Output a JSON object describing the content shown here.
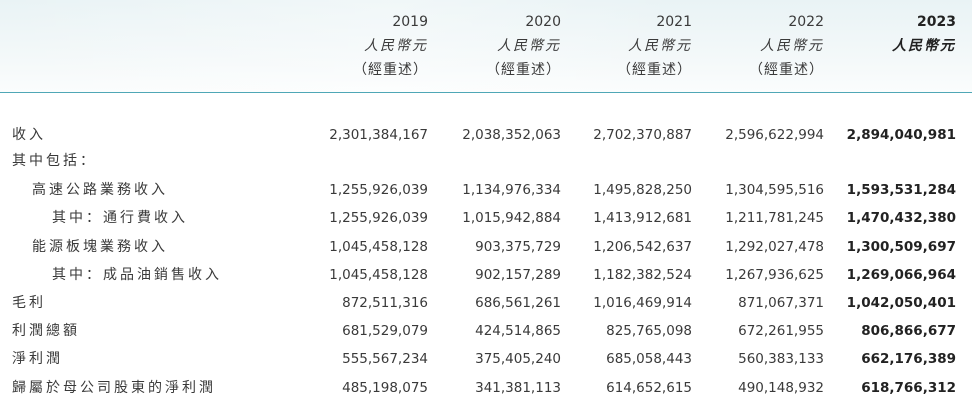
{
  "columns": [
    {
      "year": "2019",
      "currency": "人民幣元",
      "note": "（經重述）"
    },
    {
      "year": "2020",
      "currency": "人民幣元",
      "note": "（經重述）"
    },
    {
      "year": "2021",
      "currency": "人民幣元",
      "note": "（經重述）"
    },
    {
      "year": "2022",
      "currency": "人民幣元",
      "note": "（經重述）"
    },
    {
      "year": "2023",
      "currency": "人民幣元",
      "note": ""
    }
  ],
  "rows": [
    {
      "label": "收入",
      "indent": 0,
      "values": [
        "2,301,384,167",
        "2,038,352,063",
        "2,702,370,887",
        "2,596,622,994",
        "2,894,040,981"
      ]
    },
    {
      "label": "其中包括：",
      "indent": 0,
      "values": []
    },
    {
      "label": "高速公路業務收入",
      "indent": 1,
      "values": [
        "1,255,926,039",
        "1,134,976,334",
        "1,495,828,250",
        "1,304,595,516",
        "1,593,531,284"
      ]
    },
    {
      "label": "其中：通行費收入",
      "indent": 2,
      "values": [
        "1,255,926,039",
        "1,015,942,884",
        "1,413,912,681",
        "1,211,781,245",
        "1,470,432,380"
      ]
    },
    {
      "label": "能源板塊業務收入",
      "indent": 1,
      "values": [
        "1,045,458,128",
        "903,375,729",
        "1,206,542,637",
        "1,292,027,478",
        "1,300,509,697"
      ]
    },
    {
      "label": "其中：成品油銷售收入",
      "indent": 2,
      "values": [
        "1,045,458,128",
        "902,157,289",
        "1,182,382,524",
        "1,267,936,625",
        "1,269,066,964"
      ]
    },
    {
      "label": "毛利",
      "indent": 0,
      "values": [
        "872,511,316",
        "686,561,261",
        "1,016,469,914",
        "871,067,371",
        "1,042,050,401"
      ]
    },
    {
      "label": "利潤總額",
      "indent": 0,
      "values": [
        "681,529,079",
        "424,514,865",
        "825,765,098",
        "672,261,955",
        "806,866,677"
      ]
    },
    {
      "label": "淨利潤",
      "indent": 0,
      "values": [
        "555,567,234",
        "375,405,240",
        "685,058,443",
        "560,383,133",
        "662,176,389"
      ]
    },
    {
      "label": "歸屬於母公司股東的淨利潤",
      "indent": 0,
      "values": [
        "485,198,075",
        "341,381,113",
        "614,652,615",
        "490,148,932",
        "618,766,312"
      ]
    }
  ]
}
